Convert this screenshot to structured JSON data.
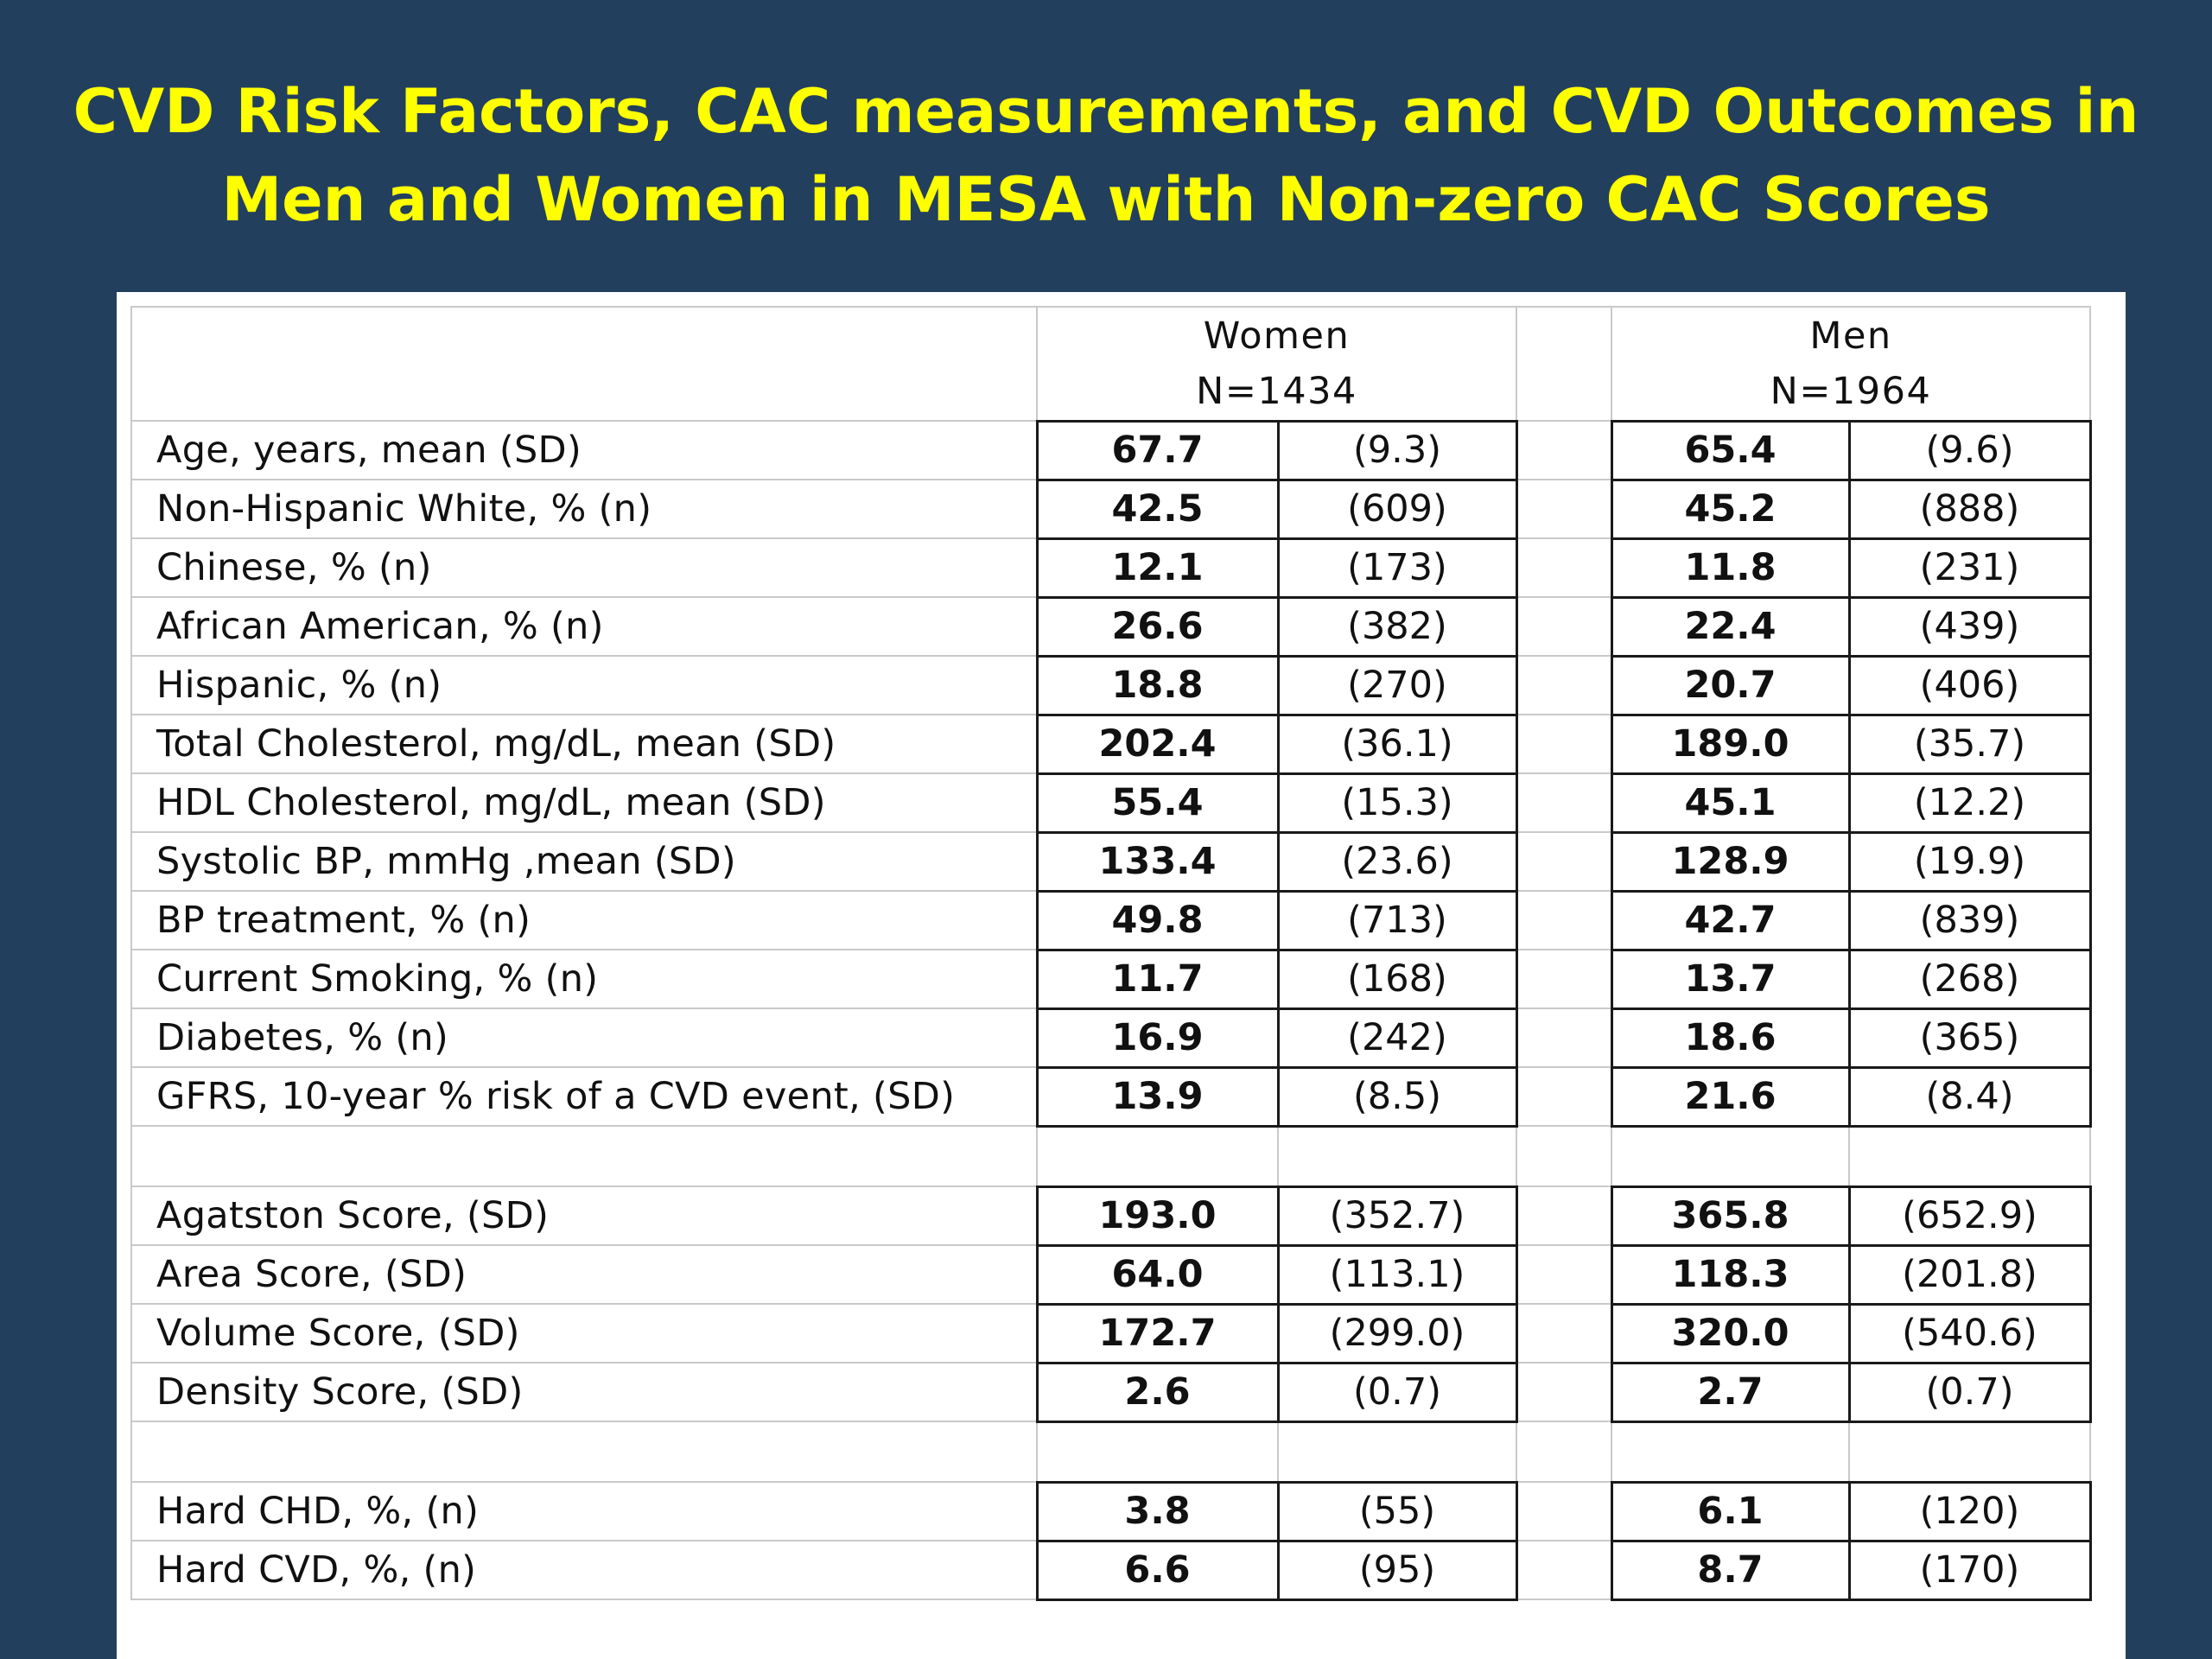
{
  "title": {
    "line1": "CVD Risk Factors, CAC measurements, and CVD Outcomes in",
    "line2": "Men and Women in MESA with Non-zero CAC Scores"
  },
  "table": {
    "groups": [
      {
        "label": "Women",
        "n": "N=1434"
      },
      {
        "label": "Men",
        "n": "N=1964"
      }
    ],
    "sections": [
      {
        "rows": [
          {
            "label": "Age, years, mean (SD)",
            "women_value": "67.7",
            "women_sd": "(9.3)",
            "men_value": "65.4",
            "men_sd": "(9.6)"
          },
          {
            "label": "Non-Hispanic White, % (n)",
            "women_value": "42.5",
            "women_sd": "(609)",
            "men_value": "45.2",
            "men_sd": "(888)"
          },
          {
            "label": "Chinese, % (n)",
            "women_value": "12.1",
            "women_sd": "(173)",
            "men_value": "11.8",
            "men_sd": "(231)"
          },
          {
            "label": "African American, % (n)",
            "women_value": "26.6",
            "women_sd": "(382)",
            "men_value": "22.4",
            "men_sd": "(439)"
          },
          {
            "label": "Hispanic, % (n)",
            "women_value": "18.8",
            "women_sd": "(270)",
            "men_value": "20.7",
            "men_sd": "(406)"
          },
          {
            "label": "Total Cholesterol, mg/dL, mean (SD)",
            "women_value": "202.4",
            "women_sd": "(36.1)",
            "men_value": "189.0",
            "men_sd": "(35.7)"
          },
          {
            "label": "HDL Cholesterol,  mg/dL, mean (SD)",
            "women_value": "55.4",
            "women_sd": "(15.3)",
            "men_value": "45.1",
            "men_sd": "(12.2)"
          },
          {
            "label": "Systolic BP, mmHg ,mean (SD)",
            "women_value": "133.4",
            "women_sd": "(23.6)",
            "men_value": "128.9",
            "men_sd": "(19.9)"
          },
          {
            "label": "BP treatment, % (n)",
            "women_value": "49.8",
            "women_sd": "(713)",
            "men_value": "42.7",
            "men_sd": "(839)"
          },
          {
            "label": "Current Smoking, % (n)",
            "women_value": "11.7",
            "women_sd": "(168)",
            "men_value": "13.7",
            "men_sd": "(268)"
          },
          {
            "label": "Diabetes, % (n)",
            "women_value": "16.9",
            "women_sd": "(242)",
            "men_value": "18.6",
            "men_sd": "(365)"
          },
          {
            "label": "GFRS, 10-year % risk of a CVD event, (SD)",
            "women_value": "13.9",
            "women_sd": "(8.5)",
            "men_value": "21.6",
            "men_sd": "(8.4)"
          }
        ]
      },
      {
        "rows": [
          {
            "label": "Agatston Score, (SD)",
            "women_value": "193.0",
            "women_sd": "(352.7)",
            "men_value": "365.8",
            "men_sd": "(652.9)"
          },
          {
            "label": "Area Score, (SD)",
            "women_value": "64.0",
            "women_sd": "(113.1)",
            "men_value": "118.3",
            "men_sd": "(201.8)"
          },
          {
            "label": "Volume Score, (SD)",
            "women_value": "172.7",
            "women_sd": "(299.0)",
            "men_value": "320.0",
            "men_sd": "(540.6)"
          },
          {
            "label": "Density Score, (SD)",
            "women_value": "2.6",
            "women_sd": "(0.7)",
            "men_value": "2.7",
            "men_sd": "(0.7)"
          }
        ]
      },
      {
        "rows": [
          {
            "label": "Hard CHD, %, (n)",
            "women_value": "3.8",
            "women_sd": "(55)",
            "men_value": "6.1",
            "men_sd": "(120)"
          },
          {
            "label": "Hard CVD, %, (n)",
            "women_value": "6.6",
            "women_sd": "(95)",
            "men_value": "8.7",
            "men_sd": "(170)"
          }
        ]
      }
    ]
  }
}
